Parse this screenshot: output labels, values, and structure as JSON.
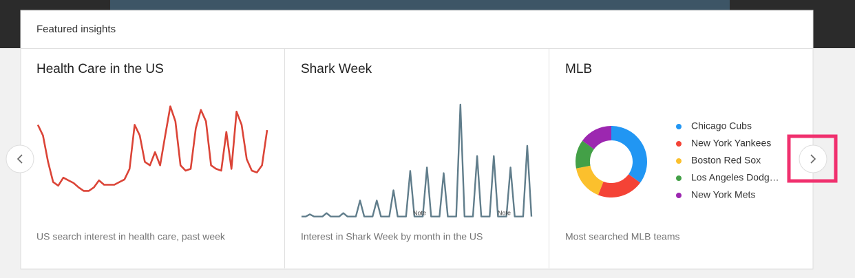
{
  "header": {
    "title": "Featured insights"
  },
  "cards": [
    {
      "title": "Health Care in the US",
      "caption": "US search interest in health care, past week",
      "chart": {
        "type": "line",
        "color": "#db4437",
        "ylim": [
          0,
          100
        ],
        "values": [
          77,
          65,
          35,
          12,
          8,
          17,
          14,
          11,
          6,
          2,
          2,
          6,
          14,
          9,
          9,
          9,
          12,
          15,
          27,
          77,
          65,
          35,
          31,
          46,
          31,
          65,
          98,
          81,
          31,
          25,
          27,
          73,
          94,
          81,
          31,
          27,
          25,
          69,
          27,
          92,
          77,
          38,
          25,
          23,
          31,
          71
        ]
      }
    },
    {
      "title": "Shark Week",
      "caption": "Interest in Shark Week by month in the US",
      "chart": {
        "type": "line",
        "color": "#607d8b",
        "ylim": [
          0,
          100
        ],
        "values": [
          2,
          2,
          4,
          2,
          2,
          2,
          5,
          2,
          2,
          2,
          5,
          2,
          2,
          2,
          16,
          2,
          2,
          2,
          16,
          2,
          2,
          2,
          25,
          2,
          2,
          2,
          42,
          2,
          2,
          2,
          45,
          2,
          2,
          2,
          40,
          2,
          2,
          2,
          100,
          2,
          2,
          2,
          55,
          2,
          2,
          2,
          55,
          2,
          2,
          2,
          45,
          2,
          2,
          2,
          64,
          2
        ],
        "notes": [
          "Note",
          "Note"
        ]
      }
    },
    {
      "title": "MLB",
      "caption": "Most searched MLB teams",
      "chart": {
        "type": "pie",
        "series": [
          {
            "name": "Chicago Cubs",
            "color": "#2196f3",
            "value": 35
          },
          {
            "name": "New York Yankees",
            "color": "#f44336",
            "value": 21
          },
          {
            "name": "Boston Red Sox",
            "color": "#fbc02d",
            "value": 16
          },
          {
            "name": "Los Angeles Dodg…",
            "color": "#43a047",
            "value": 13
          },
          {
            "name": "New York Mets",
            "color": "#9c27b0",
            "value": 15
          }
        ]
      }
    }
  ]
}
